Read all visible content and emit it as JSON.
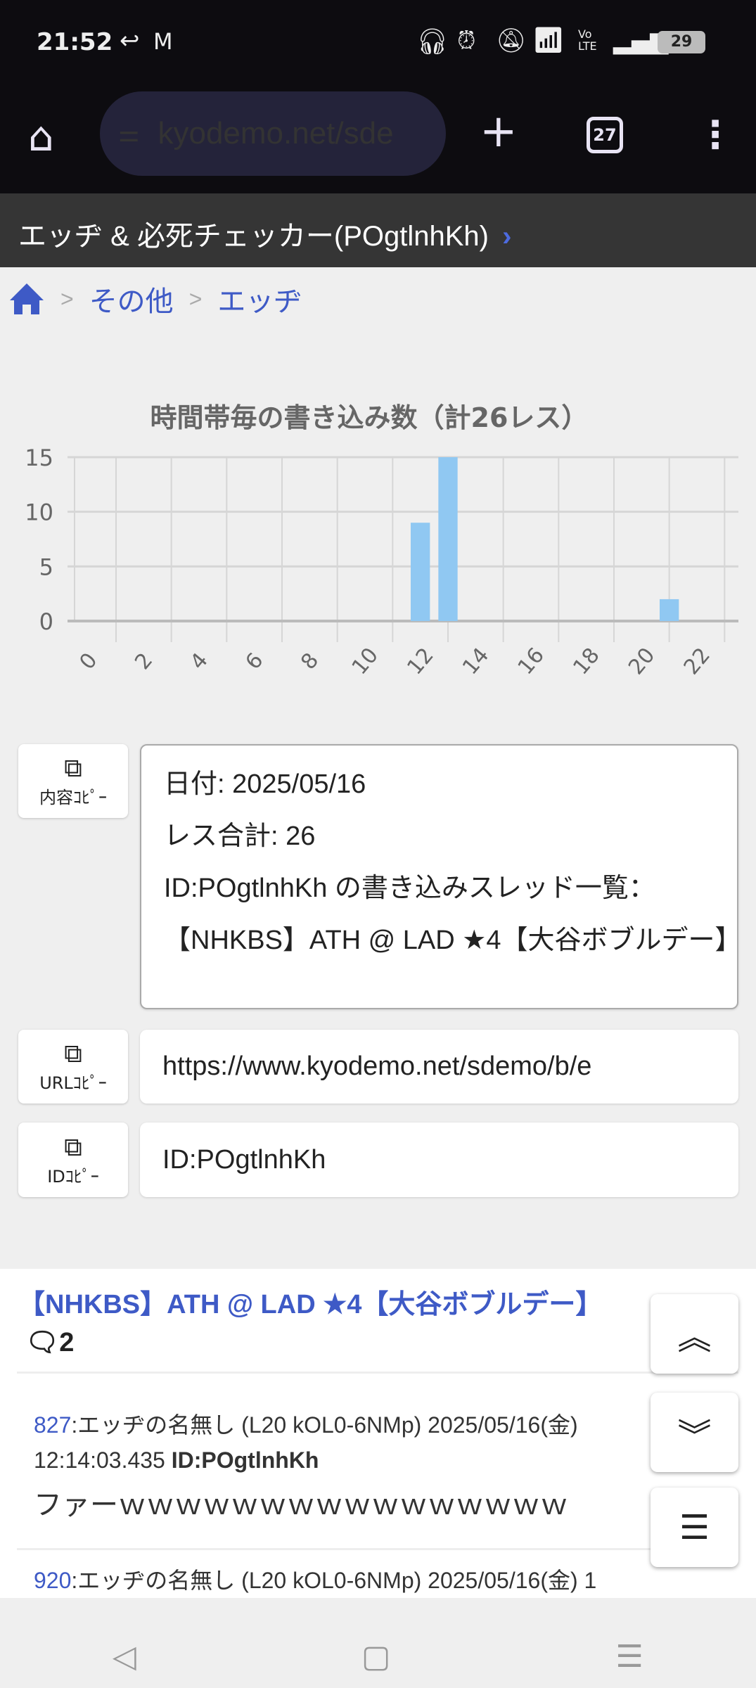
{
  "status": {
    "time": "21:52",
    "battery": "29",
    "icons": [
      "reply-icon",
      "gmail-icon",
      "headphones-icon",
      "alarm-icon",
      "bell-off-icon",
      "wifi-icon",
      "volte-icon",
      "signal-icon",
      "battery-icon"
    ],
    "volte": "Vo\nLTE"
  },
  "browser": {
    "url": "kyodemo.net/sde",
    "tab_count": "27"
  },
  "page": {
    "title": "エッヂ & 必死チェッカー(POgtlnhKh)",
    "title_chevron": "›"
  },
  "breadcrumb": {
    "items": [
      "その他",
      "エッヂ"
    ],
    "sep": ">"
  },
  "chart_data": {
    "type": "bar",
    "title": "時間帯毎の書き込み数（計26レス）",
    "categories": [
      "0",
      "1",
      "2",
      "3",
      "4",
      "5",
      "6",
      "7",
      "8",
      "9",
      "10",
      "11",
      "12",
      "13",
      "14",
      "15",
      "16",
      "17",
      "18",
      "19",
      "20",
      "21",
      "22",
      "23"
    ],
    "tick_labels": [
      "0",
      "2",
      "4",
      "6",
      "8",
      "10",
      "12",
      "14",
      "16",
      "18",
      "20",
      "22"
    ],
    "values": [
      0,
      0,
      0,
      0,
      0,
      0,
      0,
      0,
      0,
      0,
      0,
      0,
      9,
      15,
      0,
      0,
      0,
      0,
      0,
      0,
      0,
      2,
      0,
      0
    ],
    "yticks": [
      "0",
      "5",
      "10",
      "15"
    ],
    "ylim": [
      0,
      15
    ],
    "grid": true,
    "bar_color": "#90c8f2"
  },
  "copy": {
    "content_label": "内容ｺﾋﾟｰ",
    "url_label": "URLｺﾋﾟｰ",
    "id_label": "IDｺﾋﾟｰ",
    "content_lines": [
      "日付: 2025/05/16",
      "レス合計: 26",
      "ID:POgtlnhKh の書き込みスレッド一覧：",
      "【NHKBS】ATH @ LAD ★4【大谷ボブルデー】"
    ],
    "url": "https://www.kyodemo.net/sdemo/b/e",
    "id": "ID:POgtlnhKh"
  },
  "thread": {
    "title": "【NHKBS】ATH @ LAD ★4【大谷ボブルデー】",
    "comment_count": "2",
    "posts": [
      {
        "num": "827",
        "meta": ":エッヂの名無し (L20 kOL0-6NMp) 2025/05/16(金) 12:14:03.435 ",
        "id": "ID:POgtlnhKh",
        "body": "ファーｗｗｗｗｗｗｗｗｗｗｗｗｗｗｗｗ"
      },
      {
        "num": "920",
        "meta": ":エッヂの名無し (L20 kOL0-6NMp) 2025/05/16(金) 1"
      }
    ]
  },
  "fabs": {
    "top": "︽",
    "bottom": "︾",
    "menu": "☰"
  }
}
